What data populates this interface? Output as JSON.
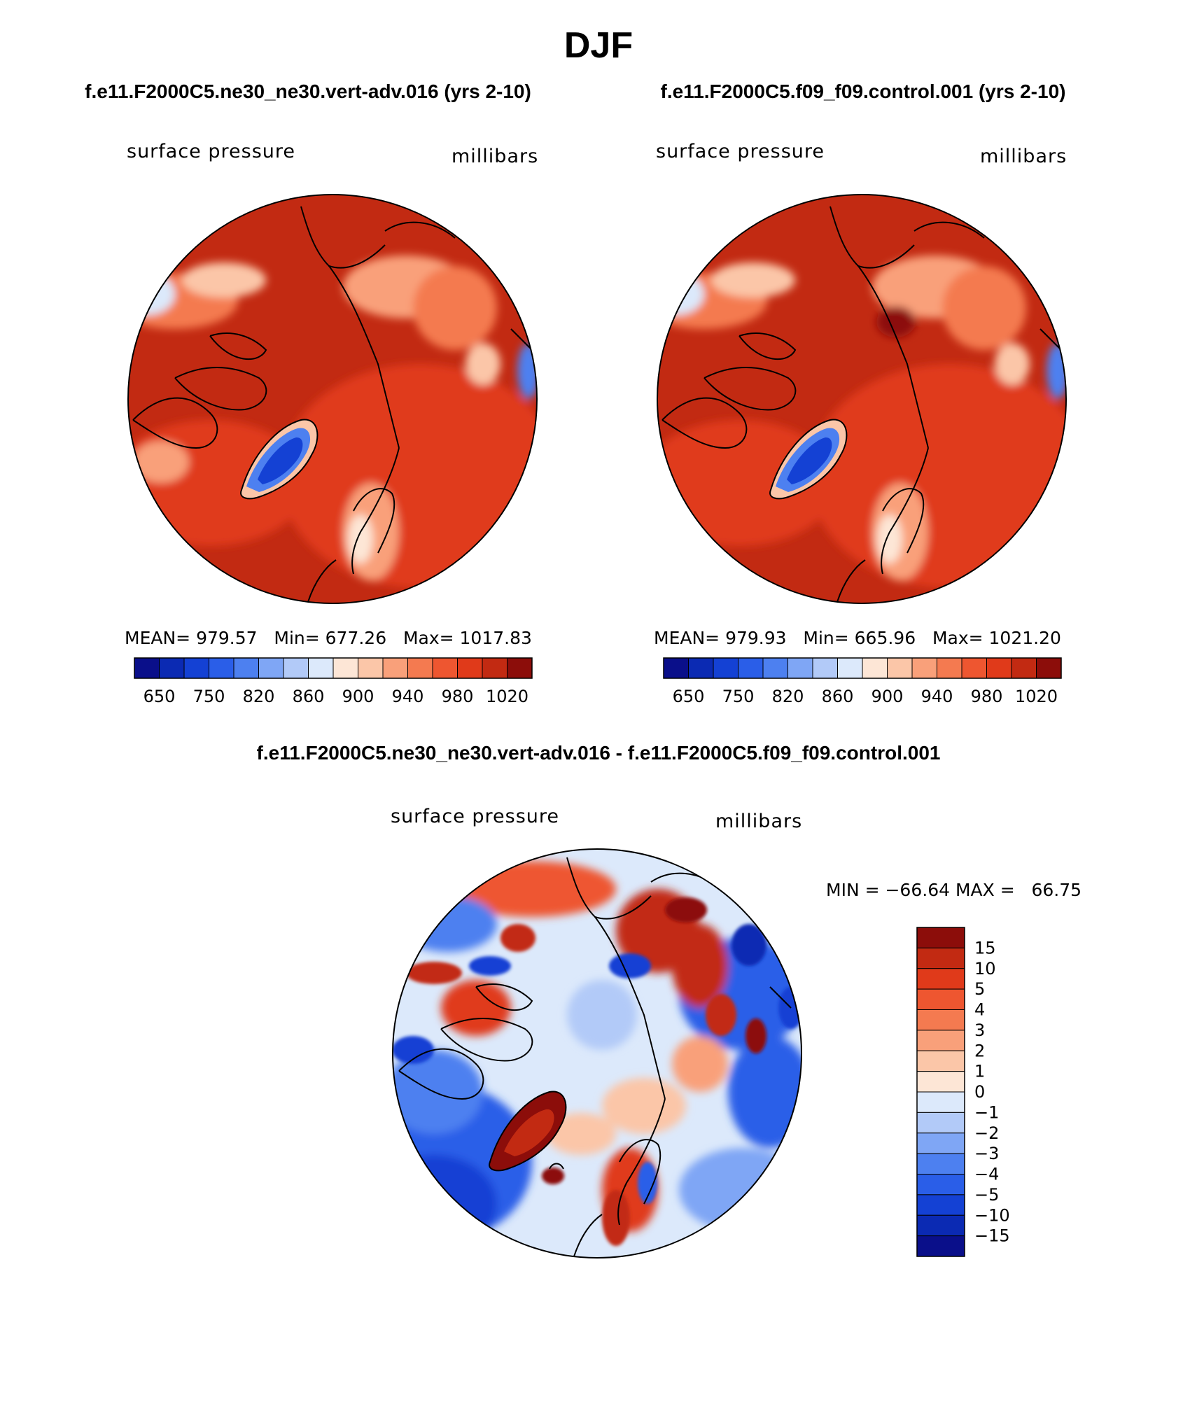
{
  "title": "DJF",
  "colors": {
    "scale_abs": [
      "#0a0f8a",
      "#0b2ab3",
      "#1441d4",
      "#2a5ee8",
      "#4d80f0",
      "#7fa6f5",
      "#b2caf8",
      "#dce9fb",
      "#fde6d6",
      "#fbc6a8",
      "#f9a07a",
      "#f47a50",
      "#ee5630",
      "#e03a1a",
      "#c22a12",
      "#8c0d0a"
    ],
    "scale_diff": [
      "#0a0f8a",
      "#0b2ab3",
      "#1441d4",
      "#2a5ee8",
      "#4d80f0",
      "#7fa6f5",
      "#b2caf8",
      "#dce9fb",
      "#fde6d6",
      "#fbc6a8",
      "#f9a07a",
      "#f47a50",
      "#ee5630",
      "#e03a1a",
      "#c22a12",
      "#8c0d0a"
    ]
  },
  "panels": [
    {
      "header": "f.e11.F2000C5.ne30_ne30.vert-adv.016 (yrs 2-10)",
      "variable": "surface pressure",
      "units": "millibars",
      "stats": "MEAN= 979.57   Min= 677.26   Max= 1017.83",
      "colorbar_labels": [
        "650",
        "750",
        "820",
        "860",
        "900",
        "940",
        "980",
        "1020"
      ]
    },
    {
      "header": "f.e11.F2000C5.f09_f09.control.001 (yrs 2-10)",
      "variable": "surface pressure",
      "units": "millibars",
      "stats": "MEAN= 979.93   Min= 665.96   Max= 1021.20",
      "colorbar_labels": [
        "650",
        "750",
        "820",
        "860",
        "900",
        "940",
        "980",
        "1020"
      ]
    }
  ],
  "diff_panel": {
    "header": "f.e11.F2000C5.ne30_ne30.vert-adv.016 - f.e11.F2000C5.f09_f09.control.001",
    "variable": "surface pressure",
    "units": "millibars",
    "stats": "MIN = −66.64 MAX =   66.75",
    "colorbar_labels": [
      "15",
      "10",
      "5",
      "4",
      "3",
      "2",
      "1",
      "0",
      "−1",
      "−2",
      "−3",
      "−4",
      "−5",
      "−10",
      "−15"
    ]
  }
}
